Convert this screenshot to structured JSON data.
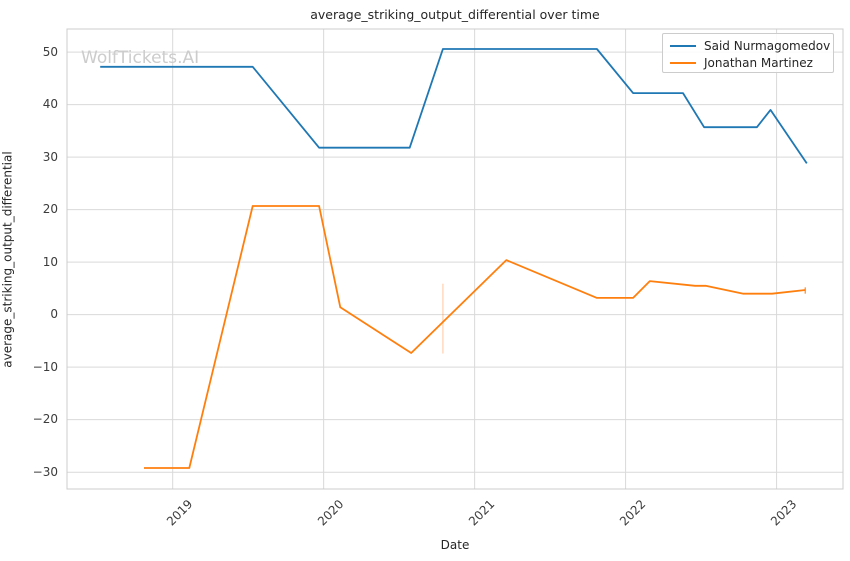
{
  "figure": {
    "watermark": "WolfTickets.AI"
  },
  "chart_data": {
    "type": "line",
    "title": "average_striking_output_differential over time",
    "xlabel": "Date",
    "ylabel": "average_striking_output_differential",
    "xlim": [
      2018.3,
      2023.44
    ],
    "ylim": [
      -33.2,
      54.4
    ],
    "grid": true,
    "legend_position": "upper right",
    "x_ticks": [
      2019,
      2020,
      2021,
      2022,
      2023
    ],
    "x_tick_labels": [
      "2019",
      "2020",
      "2021",
      "2022",
      "2023"
    ],
    "y_ticks": [
      50,
      40,
      30,
      20,
      10,
      0,
      -10,
      -20,
      -30
    ],
    "y_tick_labels": [
      "50",
      "40",
      "30",
      "20",
      "10",
      "0",
      "−10",
      "−20",
      "−30"
    ],
    "colors": {
      "grid": "#d9d9d9",
      "spine": "#cccccc",
      "text": "#262626",
      "watermark": "#cccccc"
    },
    "series": [
      {
        "name": "Said Nurmagomedov",
        "color": "#1f77b4",
        "points": [
          [
            2018.52,
            47.2
          ],
          [
            2019.53,
            47.2
          ],
          [
            2019.97,
            31.8
          ],
          [
            2020.57,
            31.8
          ],
          [
            2020.79,
            50.6
          ],
          [
            2021.81,
            50.6
          ],
          [
            2022.05,
            42.2
          ],
          [
            2022.38,
            42.2
          ],
          [
            2022.52,
            35.7
          ],
          [
            2022.87,
            35.7
          ],
          [
            2022.96,
            39.0
          ],
          [
            2023.2,
            28.8
          ]
        ],
        "error_bars": []
      },
      {
        "name": "Jonathan Martinez",
        "color": "#ff7f0e",
        "points": [
          [
            2018.81,
            -29.2
          ],
          [
            2019.11,
            -29.2
          ],
          [
            2019.53,
            20.7
          ],
          [
            2019.97,
            20.7
          ],
          [
            2020.11,
            1.4
          ],
          [
            2020.58,
            -7.3
          ],
          [
            2021.21,
            10.4
          ],
          [
            2021.81,
            3.2
          ],
          [
            2022.05,
            3.2
          ],
          [
            2022.16,
            6.4
          ],
          [
            2022.46,
            5.5
          ],
          [
            2022.53,
            5.5
          ],
          [
            2022.78,
            4.0
          ],
          [
            2022.97,
            4.0
          ],
          [
            2023.19,
            4.7
          ]
        ],
        "error_bars": [
          {
            "x": 2020.79,
            "y_low": -7.4,
            "y_high": 5.9,
            "opacity": 0.3
          },
          {
            "x": 2023.19,
            "y_low": 4.0,
            "y_high": 5.2,
            "opacity": 0.8
          }
        ]
      }
    ]
  }
}
